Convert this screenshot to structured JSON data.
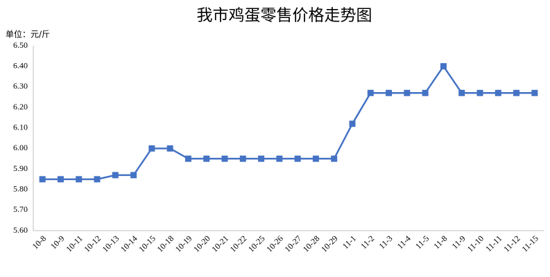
{
  "chart_data": {
    "type": "line",
    "title": "我市鸡蛋零售价格走势图",
    "unit_label": "单位：元/斤",
    "categories": [
      "10-8",
      "10-9",
      "10-11",
      "10-12",
      "10-13",
      "10-14",
      "10-15",
      "10-18",
      "10-19",
      "10-20",
      "10-21",
      "10-22",
      "10-25",
      "10-26",
      "10-27",
      "10-28",
      "10-29",
      "11-1",
      "11-2",
      "11-3",
      "11-4",
      "11-5",
      "11-8",
      "11-9",
      "11-10",
      "11-11",
      "11-12",
      "11-15"
    ],
    "values": [
      5.85,
      5.85,
      5.85,
      5.85,
      5.87,
      5.87,
      6.0,
      6.0,
      5.95,
      5.95,
      5.95,
      5.95,
      5.95,
      5.95,
      5.95,
      5.95,
      5.95,
      6.12,
      6.27,
      6.27,
      6.27,
      6.27,
      6.4,
      6.27,
      6.27,
      6.27,
      6.27,
      6.27
    ],
    "color": "#4472c4",
    "ylim": [
      5.6,
      6.5
    ],
    "yticks": [
      {
        "value": 5.6,
        "label": "5.60"
      },
      {
        "value": 5.7,
        "label": "5.70"
      },
      {
        "value": 5.8,
        "label": "5.80"
      },
      {
        "value": 5.9,
        "label": "5.90"
      },
      {
        "value": 6.0,
        "label": "6.00"
      },
      {
        "value": 6.1,
        "label": "6.10"
      },
      {
        "value": 6.2,
        "label": "6.20"
      },
      {
        "value": 6.3,
        "label": "6.30"
      },
      {
        "value": 6.4,
        "label": "6.40"
      },
      {
        "value": 6.5,
        "label": "6.50"
      }
    ],
    "grid": false
  }
}
